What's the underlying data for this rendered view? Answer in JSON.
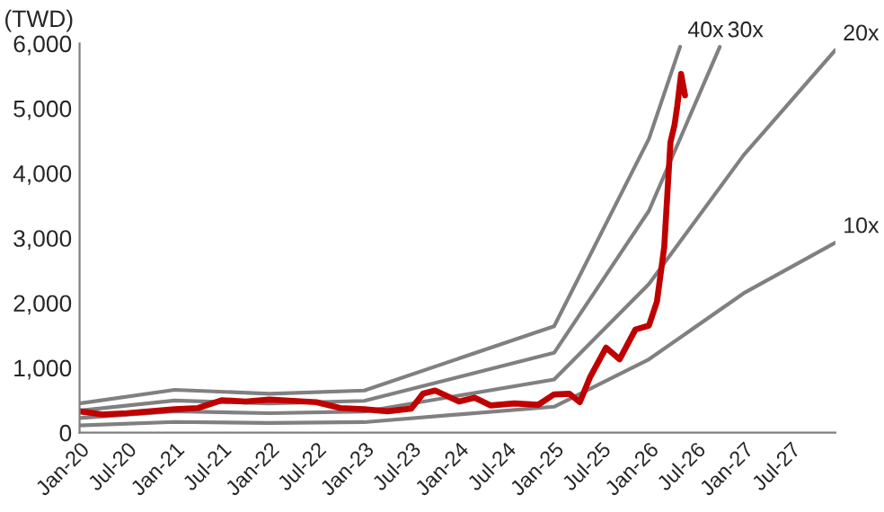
{
  "chart_data": {
    "type": "line",
    "ylabel": "(TWD)",
    "xlim": [
      "2020-01-01",
      "2027-12-20"
    ],
    "ylim": [
      0,
      6000
    ],
    "xticks": [
      {
        "value": "2020-01-01",
        "label": "Jan-20"
      },
      {
        "value": "2020-07-01",
        "label": "Jul-20"
      },
      {
        "value": "2021-01-01",
        "label": "Jan-21"
      },
      {
        "value": "2021-07-01",
        "label": "Jul-21"
      },
      {
        "value": "2022-01-01",
        "label": "Jan-22"
      },
      {
        "value": "2022-07-01",
        "label": "Jul-22"
      },
      {
        "value": "2023-01-01",
        "label": "Jan-23"
      },
      {
        "value": "2023-07-01",
        "label": "Jul-23"
      },
      {
        "value": "2024-01-01",
        "label": "Jan-24"
      },
      {
        "value": "2024-07-01",
        "label": "Jul-24"
      },
      {
        "value": "2025-01-01",
        "label": "Jan-25"
      },
      {
        "value": "2025-07-01",
        "label": "Jul-25"
      },
      {
        "value": "2026-01-01",
        "label": "Jan-26"
      },
      {
        "value": "2026-07-01",
        "label": "Jul-26"
      },
      {
        "value": "2027-01-01",
        "label": "Jan-27"
      },
      {
        "value": "2027-07-01",
        "label": "Jul-27"
      }
    ],
    "yticks": [
      0,
      {
        "value": 1000,
        "label": "1,000"
      },
      {
        "value": 2000,
        "label": "2,000"
      },
      {
        "value": 3000,
        "label": "3,000"
      },
      {
        "value": 4000,
        "label": "4,000"
      },
      {
        "value": 5000,
        "label": "5,000"
      },
      {
        "value": 6000,
        "label": "6,000"
      }
    ],
    "grid": false,
    "legend": false,
    "marker": "none",
    "line_style": "solid",
    "series": [
      {
        "name": "40x",
        "color": "#808080",
        "x": [
          "2020-01-01",
          "2021-01-01",
          "2022-01-01",
          "2023-01-01",
          "2025-01-01",
          "2026-01-01",
          "2026-05-01"
        ],
        "values": [
          450,
          660,
          600,
          650,
          1640,
          4530,
          5950
        ]
      },
      {
        "name": "30x",
        "color": "#808080",
        "x": [
          "2020-01-01",
          "2021-01-01",
          "2022-01-01",
          "2023-01-01",
          "2025-01-01",
          "2026-01-01",
          "2026-10-01"
        ],
        "values": [
          340,
          495,
          450,
          490,
          1230,
          3420,
          5950
        ]
      },
      {
        "name": "20x",
        "color": "#808080",
        "x": [
          "2020-01-01",
          "2021-01-01",
          "2022-01-01",
          "2023-01-01",
          "2025-01-01",
          "2026-01-01",
          "2027-01-01",
          "2027-12-20"
        ],
        "values": [
          225,
          330,
          300,
          325,
          820,
          2290,
          4280,
          5900
        ]
      },
      {
        "name": "10x",
        "color": "#808080",
        "x": [
          "2020-01-01",
          "2021-01-01",
          "2022-01-01",
          "2023-01-01",
          "2025-01-01",
          "2026-01-01",
          "2027-01-01",
          "2027-12-20"
        ],
        "values": [
          112,
          165,
          150,
          162,
          400,
          1130,
          2150,
          2930
        ]
      },
      {
        "color": "#c00000",
        "x": [
          "2020-01-01",
          "2020-04-01",
          "2020-07-01",
          "2020-10-01",
          "2021-01-01",
          "2021-04-01",
          "2021-07-01",
          "2021-10-01",
          "2022-01-01",
          "2022-04-01",
          "2022-07-01",
          "2022-10-01",
          "2023-01-01",
          "2023-04-01",
          "2023-07-01",
          "2023-08-15",
          "2023-10-01",
          "2024-01-01",
          "2024-03-01",
          "2024-05-01",
          "2024-08-01",
          "2024-11-01",
          "2025-01-01",
          "2025-03-01",
          "2025-04-10",
          "2025-05-20",
          "2025-07-20",
          "2025-09-10",
          "2025-11-10",
          "2026-01-01",
          "2026-02-01",
          "2026-03-01",
          "2026-03-25",
          "2026-04-10",
          "2026-04-20",
          "2026-05-05",
          "2026-05-20"
        ],
        "values": [
          330,
          280,
          300,
          330,
          360,
          380,
          500,
          480,
          510,
          490,
          470,
          380,
          360,
          330,
          370,
          600,
          650,
          480,
          540,
          420,
          450,
          430,
          590,
          600,
          470,
          860,
          1310,
          1130,
          1590,
          1650,
          2020,
          2860,
          4480,
          4750,
          5030,
          5530,
          5200
        ]
      }
    ]
  }
}
